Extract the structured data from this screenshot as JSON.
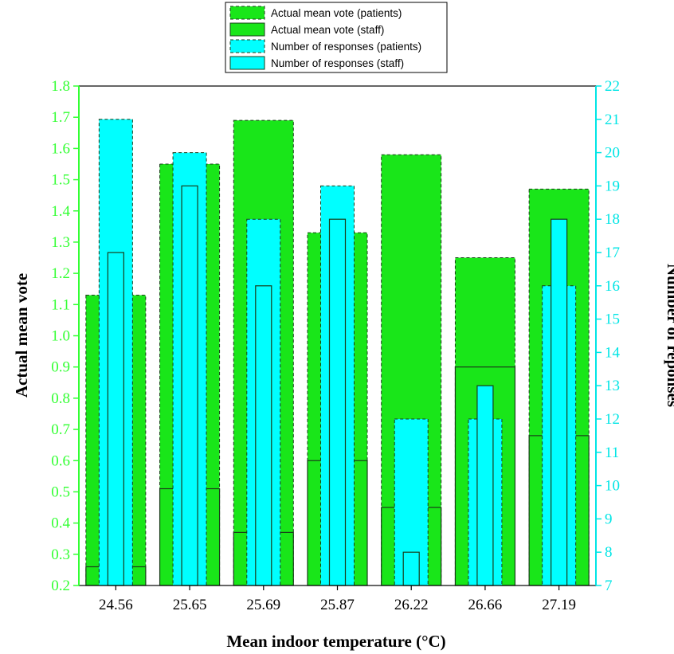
{
  "chart_data": {
    "type": "bar",
    "categories": [
      "24.56",
      "25.65",
      "25.69",
      "25.87",
      "26.22",
      "26.66",
      "27.19"
    ],
    "series": [
      {
        "name": "Actual mean vote (patients)",
        "axis": "left",
        "values": [
          1.13,
          1.55,
          1.69,
          1.33,
          1.58,
          1.25,
          1.47
        ],
        "color": "#19e619",
        "border": "dashed"
      },
      {
        "name": "Actual mean vote (staff)",
        "axis": "left",
        "values": [
          0.26,
          0.51,
          0.37,
          0.6,
          0.45,
          0.9,
          0.68
        ],
        "color": "#19e619",
        "border": "solid"
      },
      {
        "name": "Number of responses (patients)",
        "axis": "right",
        "values": [
          21,
          20,
          18,
          19,
          12,
          12,
          16
        ],
        "color": "#00ffff",
        "border": "dashed"
      },
      {
        "name": "Number of responses (staff)",
        "axis": "right",
        "values": [
          17,
          19,
          16,
          18,
          8,
          13,
          18
        ],
        "color": "#00ffff",
        "border": "solid"
      }
    ],
    "xlabel": "Mean indoor temperature (°C)",
    "ylabel": "Actual mean vote",
    "y2label": "Number of reponses",
    "ylim": [
      0.2,
      1.8
    ],
    "y2lim": [
      7,
      22
    ],
    "yticks": [
      "0.2",
      "0.3",
      "0.4",
      "0.5",
      "0.6",
      "0.7",
      "0.8",
      "0.9",
      "1.0",
      "1.1",
      "1.2",
      "1.3",
      "1.4",
      "1.5",
      "1.6",
      "1.7",
      "1.8"
    ],
    "y2ticks": [
      "7",
      "8",
      "9",
      "10",
      "11",
      "12",
      "13",
      "14",
      "15",
      "16",
      "17",
      "18",
      "19",
      "20",
      "21",
      "22"
    ],
    "legend_position": "top-center",
    "grid": false,
    "left_axis_color": "#33ff33",
    "right_axis_color": "#00e5e5"
  }
}
